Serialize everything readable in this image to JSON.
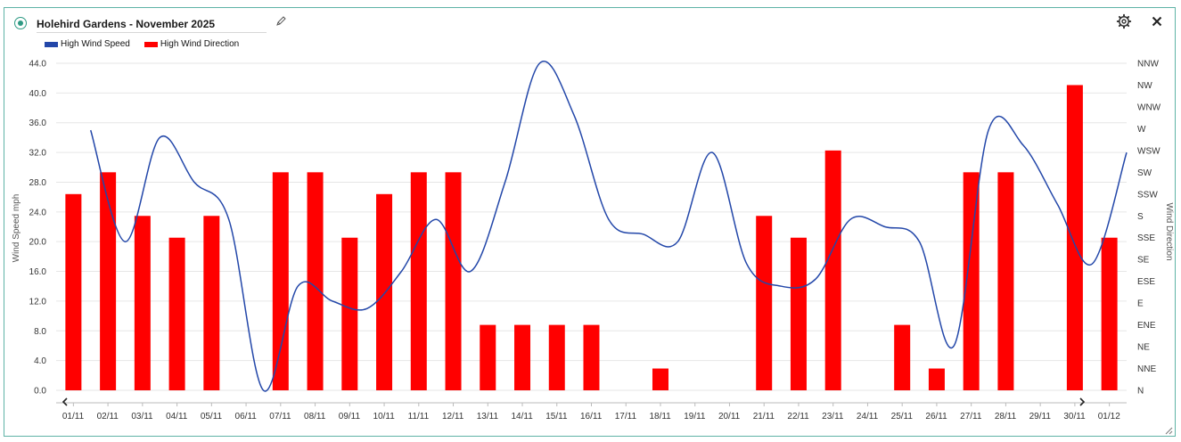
{
  "header": {
    "title": "Holehird Gardens - November 2025",
    "status_icon": "status-dot-icon",
    "edit_icon": "pencil-icon",
    "settings_icon": "gear-icon",
    "close_icon": "close-icon"
  },
  "colors": {
    "speed": "#2347a9",
    "direction": "#ff0000",
    "accent": "#2e9a84"
  },
  "chart_data": {
    "type": "bar",
    "categories": [
      "01/11",
      "02/11",
      "03/11",
      "04/11",
      "05/11",
      "06/11",
      "07/11",
      "08/11",
      "09/11",
      "10/11",
      "11/11",
      "12/11",
      "13/11",
      "14/11",
      "15/11",
      "16/11",
      "17/11",
      "18/11",
      "19/11",
      "20/11",
      "21/11",
      "22/11",
      "23/11",
      "24/11",
      "25/11",
      "26/11",
      "27/11",
      "28/11",
      "29/11",
      "30/11",
      "01/12"
    ],
    "ylabel": "Wind Speed mph",
    "y2label": "Wind Direction",
    "ylim": [
      0,
      44
    ],
    "yticks": [
      "0.0",
      "4.0",
      "8.0",
      "12.0",
      "16.0",
      "20.0",
      "24.0",
      "28.0",
      "32.0",
      "36.0",
      "40.0",
      "44.0"
    ],
    "y2ticks": [
      "N",
      "NNE",
      "NE",
      "ENE",
      "E",
      "ESE",
      "SE",
      "SSE",
      "S",
      "SSW",
      "SW",
      "WSW",
      "W",
      "WNW",
      "NW",
      "NNW"
    ],
    "legend_position": "top-left",
    "grid": true,
    "series": [
      {
        "name": "High Wind Speed",
        "type": "line",
        "axis": "left",
        "x": [
          0.5,
          1.5,
          2.5,
          3.5,
          4.5,
          5.5,
          6.5,
          7.5,
          8.5,
          9.5,
          10.5,
          11.5,
          12.5,
          13.5,
          14.5,
          15.5,
          16.5,
          17.5,
          18.5,
          19.5,
          20.5,
          21.5,
          22.5,
          23.5,
          24.5,
          25.5,
          26.5,
          27.5,
          28.5,
          29.5,
          30.5
        ],
        "values": [
          35,
          20,
          34,
          28,
          23,
          0,
          14,
          12,
          11,
          16,
          23,
          16,
          28,
          44,
          37,
          23,
          21,
          20,
          32,
          17,
          14,
          15,
          23,
          22,
          20,
          6,
          35,
          33,
          25,
          17,
          32
        ]
      },
      {
        "name": "High Wind Direction",
        "type": "bar",
        "axis": "right",
        "x": [
          0,
          1,
          2,
          3,
          4,
          6,
          7,
          8,
          9,
          10,
          11,
          12,
          13,
          14,
          15,
          17,
          20,
          21,
          22,
          24,
          25,
          26,
          27,
          29,
          30
        ],
        "values": [
          "SSW",
          "SW",
          "S",
          "SSE",
          "S",
          "SW",
          "SW",
          "SSE",
          "SSW",
          "SW",
          "SW",
          "ENE",
          "ENE",
          "ENE",
          "ENE",
          "NNE",
          "S",
          "SSE",
          "WSW",
          "ENE",
          "NNE",
          "SW",
          "SW",
          "NW",
          "SSE"
        ]
      }
    ]
  }
}
